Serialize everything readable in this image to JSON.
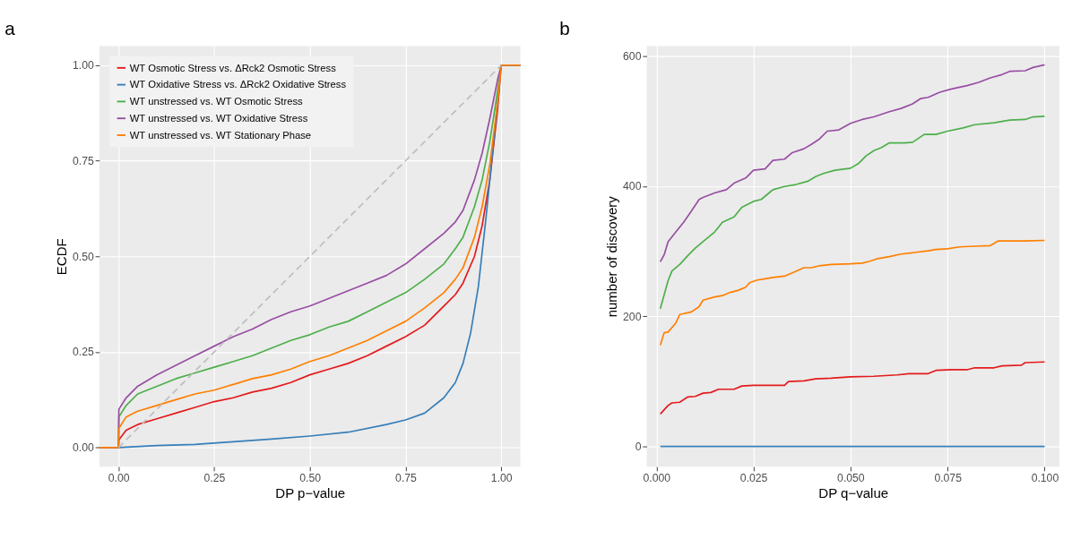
{
  "chart_data": [
    {
      "type": "line",
      "title": "a",
      "xlabel": "DP p−value",
      "ylabel": "ECDF",
      "xlim": [
        -0.05,
        1.05
      ],
      "ylim": [
        -0.05,
        1.05
      ],
      "xticks": [
        {
          "value": 0,
          "label": "0.00"
        },
        0.25,
        {
          "value": 0.5,
          "label": "0.50"
        },
        0.75,
        {
          "value": 1,
          "label": "1.00"
        }
      ],
      "yticks": [
        {
          "value": 0,
          "label": "0.00"
        },
        0.25,
        {
          "value": 0.5,
          "label": "0.50"
        },
        0.75,
        {
          "value": 1,
          "label": "1.00"
        }
      ],
      "grid": true,
      "legend": "top left",
      "line_style": "solid",
      "marker": "none",
      "series": [
        {
          "name": "WT Osmotic Stress vs. ΔRck2 Osmotic Stress",
          "color": "#e41a1c",
          "x": [
            -0.05,
            0,
            0.001,
            0.02,
            0.05,
            0.1,
            0.15,
            0.2,
            0.25,
            0.3,
            0.35,
            0.4,
            0.45,
            0.5,
            0.55,
            0.6,
            0.65,
            0.7,
            0.75,
            0.8,
            0.85,
            0.88,
            0.9,
            0.93,
            0.95,
            0.97,
            0.99,
            1,
            1.05
          ],
          "values": [
            0,
            0,
            0.02,
            0.045,
            0.06,
            0.075,
            0.09,
            0.105,
            0.12,
            0.13,
            0.145,
            0.155,
            0.17,
            0.19,
            0.205,
            0.22,
            0.24,
            0.265,
            0.29,
            0.32,
            0.37,
            0.4,
            0.43,
            0.5,
            0.58,
            0.7,
            0.88,
            1,
            1
          ]
        },
        {
          "name": "WT Oxidative Stress vs. ΔRck2 Oxidative Stress",
          "color": "#377eb8",
          "x": [
            -0.05,
            0,
            0.1,
            0.2,
            0.3,
            0.4,
            0.5,
            0.6,
            0.7,
            0.75,
            0.8,
            0.85,
            0.88,
            0.9,
            0.92,
            0.94,
            0.96,
            0.98,
            0.99,
            0.995
          ],
          "values": [
            0,
            0,
            0.005,
            0.008,
            0.015,
            0.022,
            0.03,
            0.04,
            0.06,
            0.072,
            0.09,
            0.13,
            0.17,
            0.22,
            0.3,
            0.42,
            0.6,
            0.8,
            0.9,
            0.95
          ]
        },
        {
          "name": "WT unstressed vs. WT Osmotic Stress",
          "color": "#4daf4a",
          "x": [
            -0.05,
            0,
            0.001,
            0.02,
            0.05,
            0.1,
            0.15,
            0.2,
            0.25,
            0.3,
            0.35,
            0.4,
            0.45,
            0.5,
            0.55,
            0.6,
            0.65,
            0.7,
            0.75,
            0.8,
            0.85,
            0.88,
            0.9,
            0.93,
            0.95,
            0.97,
            0.99,
            1,
            1.05
          ],
          "values": [
            0,
            0,
            0.08,
            0.11,
            0.14,
            0.16,
            0.18,
            0.195,
            0.21,
            0.225,
            0.24,
            0.26,
            0.28,
            0.295,
            0.315,
            0.33,
            0.355,
            0.38,
            0.405,
            0.44,
            0.48,
            0.52,
            0.55,
            0.63,
            0.7,
            0.8,
            0.93,
            1,
            1
          ]
        },
        {
          "name": "WT unstressed vs. WT Oxidative Stress",
          "color": "#984ea3",
          "x": [
            -0.05,
            0,
            0.001,
            0.02,
            0.05,
            0.1,
            0.15,
            0.2,
            0.25,
            0.3,
            0.35,
            0.4,
            0.45,
            0.5,
            0.55,
            0.6,
            0.65,
            0.7,
            0.75,
            0.8,
            0.85,
            0.88,
            0.9,
            0.93,
            0.95,
            0.97,
            0.99,
            1,
            1.05
          ],
          "values": [
            0,
            0,
            0.1,
            0.13,
            0.16,
            0.19,
            0.215,
            0.24,
            0.265,
            0.29,
            0.31,
            0.335,
            0.355,
            0.37,
            0.39,
            0.41,
            0.43,
            0.45,
            0.48,
            0.52,
            0.56,
            0.59,
            0.62,
            0.7,
            0.77,
            0.86,
            0.96,
            1,
            1
          ]
        },
        {
          "name": "WT unstressed vs. WT Stationary Phase",
          "color": "#ff7f00",
          "x": [
            -0.05,
            0,
            0.001,
            0.02,
            0.05,
            0.1,
            0.15,
            0.2,
            0.25,
            0.3,
            0.35,
            0.4,
            0.45,
            0.5,
            0.55,
            0.6,
            0.65,
            0.7,
            0.75,
            0.8,
            0.85,
            0.88,
            0.9,
            0.93,
            0.95,
            0.97,
            0.99,
            1,
            1.05
          ],
          "values": [
            0,
            0,
            0.05,
            0.08,
            0.095,
            0.11,
            0.125,
            0.14,
            0.15,
            0.165,
            0.18,
            0.19,
            0.205,
            0.225,
            0.24,
            0.26,
            0.28,
            0.305,
            0.33,
            0.365,
            0.405,
            0.44,
            0.47,
            0.55,
            0.63,
            0.74,
            0.9,
            1,
            1
          ]
        },
        {
          "color": "#bebebe",
          "line_style": "dashed",
          "x": [
            0,
            1
          ],
          "values": [
            0,
            1
          ]
        }
      ]
    },
    {
      "type": "line",
      "title": "b",
      "xlabel": "DP q−value",
      "ylabel": "number of discovery",
      "xlim": [
        -0.0025,
        0.1038
      ],
      "ylim": [
        -31,
        616
      ],
      "xticks": [
        {
          "value": 0,
          "label": "0.000"
        },
        0.025,
        {
          "value": 0.05,
          "label": "0.050"
        },
        0.075,
        {
          "value": 0.1,
          "label": "0.100"
        }
      ],
      "yticks": [
        0,
        200,
        400,
        600
      ],
      "grid": true,
      "legend": false,
      "line_style": "solid",
      "marker": "none",
      "series": [
        {
          "color": "#e41a1c",
          "x": [
            0.001,
            0.003,
            0.004,
            0.006,
            0.008,
            0.01,
            0.012,
            0.014,
            0.016,
            0.02,
            0.022,
            0.025,
            0.033,
            0.034,
            0.038,
            0.041,
            0.045,
            0.05,
            0.056,
            0.062,
            0.065,
            0.07,
            0.072,
            0.076,
            0.08,
            0.082,
            0.087,
            0.089,
            0.094,
            0.095,
            0.1
          ],
          "values": [
            50,
            63,
            67,
            68,
            76,
            77,
            82,
            83,
            88,
            88,
            93,
            94,
            94,
            100,
            101,
            104,
            105,
            107,
            108,
            110,
            112,
            112,
            117,
            118,
            118,
            121,
            121,
            124,
            125,
            129,
            130
          ]
        },
        {
          "color": "#377eb8",
          "x": [
            0.001,
            0.1
          ],
          "values": [
            0,
            0
          ]
        },
        {
          "color": "#4daf4a",
          "x": [
            0.001,
            0.003,
            0.004,
            0.006,
            0.008,
            0.01,
            0.012,
            0.015,
            0.017,
            0.02,
            0.022,
            0.025,
            0.027,
            0.029,
            0.03,
            0.033,
            0.036,
            0.039,
            0.041,
            0.043,
            0.046,
            0.05,
            0.052,
            0.054,
            0.056,
            0.058,
            0.06,
            0.064,
            0.066,
            0.069,
            0.072,
            0.075,
            0.079,
            0.082,
            0.087,
            0.091,
            0.095,
            0.097,
            0.1
          ],
          "values": [
            212,
            255,
            270,
            280,
            293,
            305,
            315,
            330,
            345,
            353,
            368,
            377,
            380,
            390,
            395,
            400,
            403,
            408,
            415,
            420,
            425,
            428,
            435,
            447,
            455,
            460,
            467,
            467,
            468,
            480,
            480,
            485,
            490,
            495,
            498,
            502,
            503,
            507,
            508
          ]
        },
        {
          "color": "#984ea3",
          "x": [
            0.001,
            0.002,
            0.003,
            0.005,
            0.007,
            0.009,
            0.011,
            0.012,
            0.015,
            0.018,
            0.02,
            0.023,
            0.025,
            0.028,
            0.03,
            0.033,
            0.035,
            0.038,
            0.04,
            0.042,
            0.044,
            0.047,
            0.05,
            0.053,
            0.056,
            0.06,
            0.063,
            0.066,
            0.068,
            0.07,
            0.073,
            0.076,
            0.08,
            0.083,
            0.086,
            0.089,
            0.091,
            0.095,
            0.097,
            0.1
          ],
          "values": [
            284,
            295,
            315,
            330,
            345,
            362,
            380,
            383,
            390,
            395,
            405,
            413,
            425,
            427,
            440,
            442,
            452,
            458,
            465,
            473,
            485,
            487,
            497,
            503,
            507,
            515,
            520,
            527,
            535,
            537,
            545,
            550,
            555,
            560,
            567,
            572,
            577,
            578,
            583,
            587
          ]
        },
        {
          "color": "#ff7f00",
          "x": [
            0.001,
            0.002,
            0.003,
            0.005,
            0.006,
            0.009,
            0.011,
            0.012,
            0.015,
            0.017,
            0.019,
            0.021,
            0.023,
            0.024,
            0.026,
            0.028,
            0.03,
            0.033,
            0.035,
            0.038,
            0.04,
            0.042,
            0.045,
            0.05,
            0.053,
            0.055,
            0.057,
            0.06,
            0.063,
            0.066,
            0.07,
            0.072,
            0.075,
            0.078,
            0.082,
            0.086,
            0.088,
            0.095,
            0.1
          ],
          "values": [
            156,
            175,
            176,
            190,
            203,
            207,
            215,
            225,
            230,
            232,
            237,
            240,
            245,
            252,
            256,
            258,
            260,
            262,
            267,
            275,
            275,
            278,
            280,
            281,
            282,
            285,
            289,
            292,
            296,
            298,
            301,
            303,
            304,
            307,
            308,
            309,
            316,
            316,
            317
          ]
        }
      ]
    }
  ]
}
